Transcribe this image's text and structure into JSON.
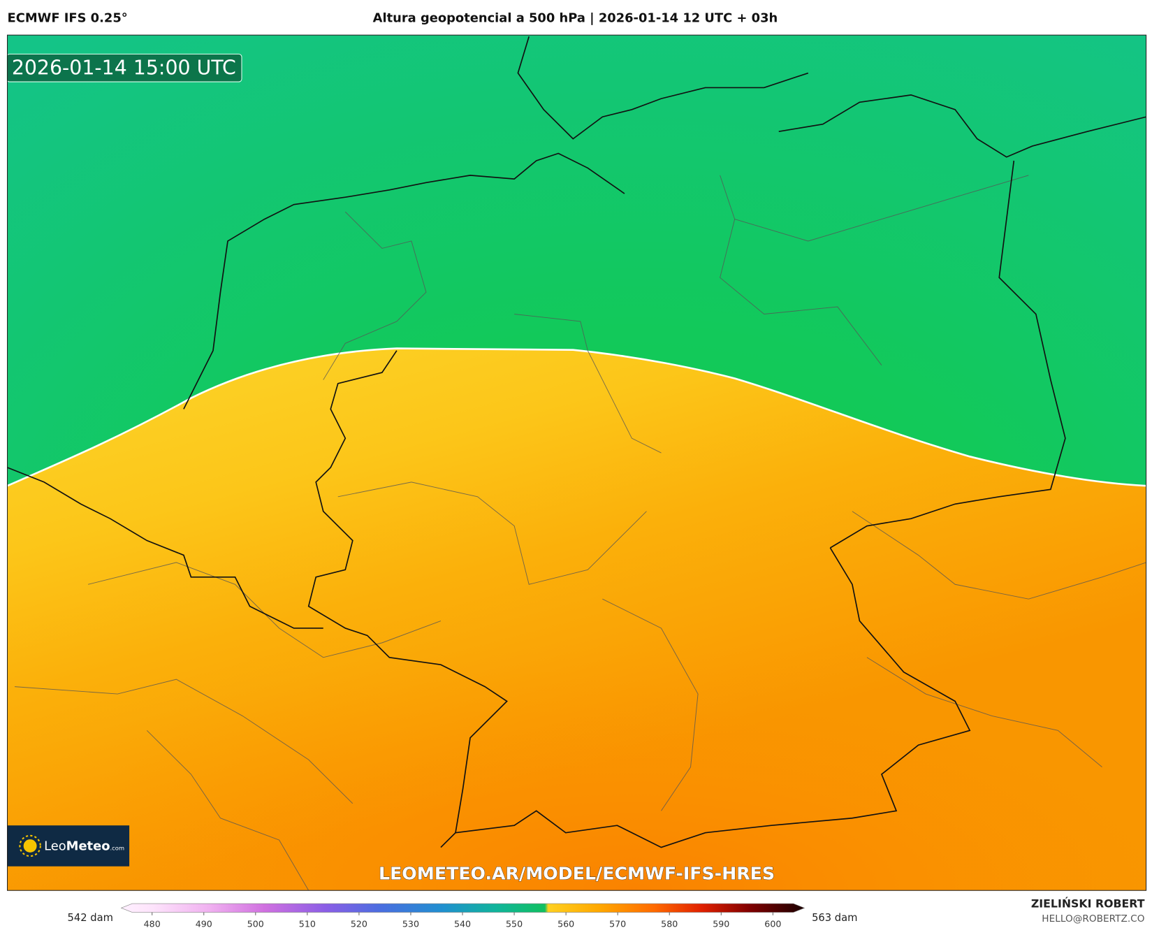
{
  "header": {
    "model": "ECMWF IFS 0.25°",
    "title": "Altura geopotencial a 500 hPa | 2026-01-14 12 UTC + 03h"
  },
  "map": {
    "valid_time": "2026-01-14 15:00 UTC",
    "watermark": "LEOMETEO.AR/MODEL/ECMWF-IFS-HRES"
  },
  "logo": {
    "brand_light": "Leo",
    "brand_bold": "Meteo",
    "domain": ".com"
  },
  "colorbar": {
    "min_label": "542 dam",
    "max_label": "563 dam",
    "ticks": [
      480,
      490,
      500,
      510,
      520,
      530,
      540,
      550,
      560,
      570,
      580,
      590,
      600
    ]
  },
  "footer": {
    "author": "ZIELIŃSKI ROBERT",
    "email": "HELLO@ROBERTZ.CO"
  }
}
